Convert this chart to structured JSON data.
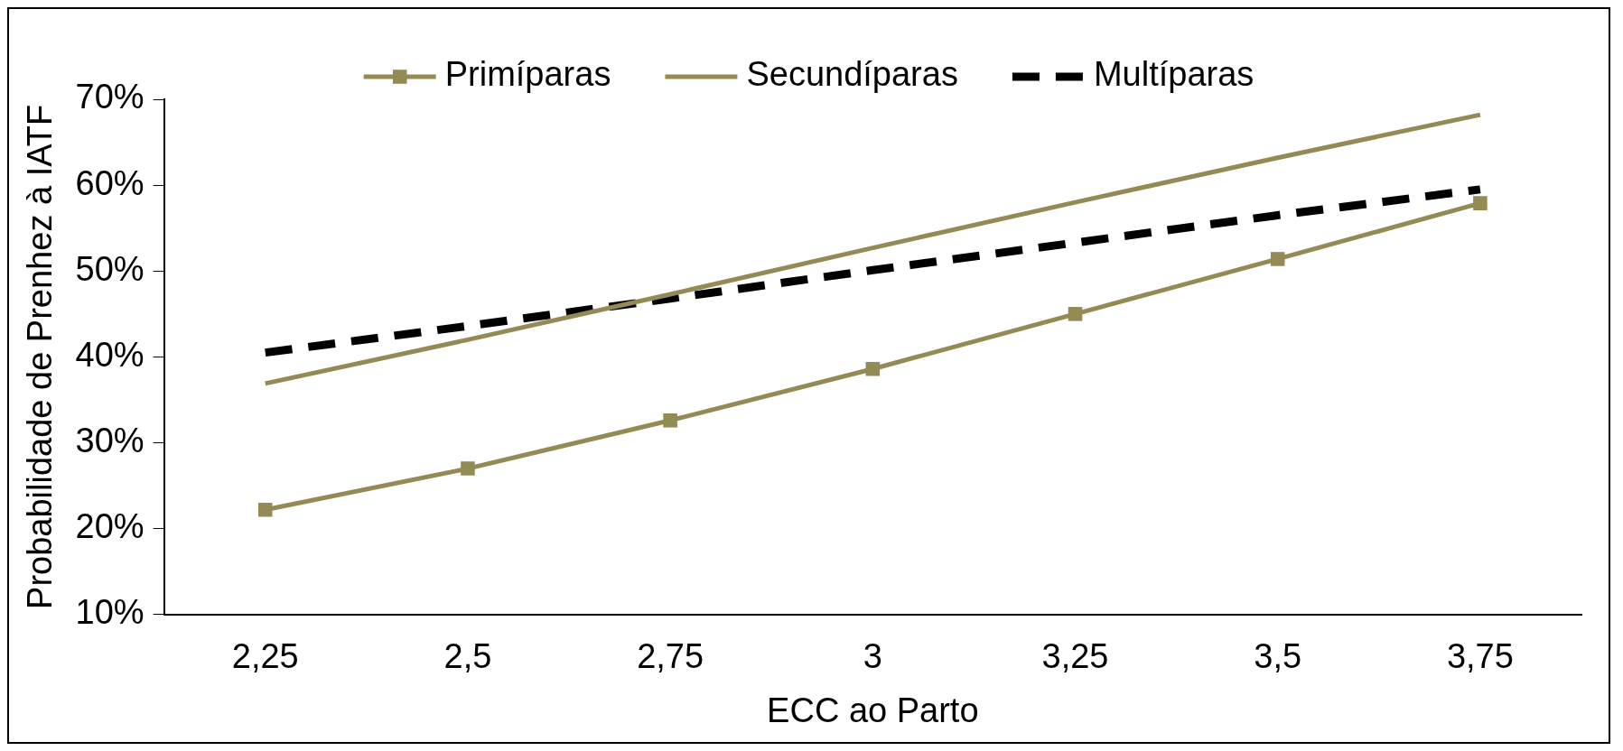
{
  "chart_data": {
    "type": "line",
    "xlabel": "ECC ao Parto",
    "ylabel": "Probabilidade de Prenhez à IATF",
    "categories": [
      "2,25",
      "2,5",
      "2,75",
      "3",
      "3,25",
      "3,5",
      "3,75"
    ],
    "series": [
      {
        "name": "Primíparas",
        "color": "#948a54",
        "marker": "square",
        "line_style": "solid",
        "values": [
          22.2,
          27.0,
          32.6,
          38.6,
          45.0,
          51.4,
          57.9
        ]
      },
      {
        "name": "Secundíparas",
        "color": "#948a54",
        "marker": "none",
        "line_style": "solid",
        "values": [
          36.9,
          42.0,
          47.3,
          52.7,
          58.0,
          63.2,
          68.2
        ]
      },
      {
        "name": "Multíparas",
        "color": "#000000",
        "marker": "none",
        "line_style": "dashed",
        "values": [
          40.5,
          43.6,
          46.8,
          50.1,
          53.3,
          56.5,
          59.5
        ]
      }
    ],
    "ylim": [
      10,
      70
    ],
    "yticks": [
      {
        "value": 10,
        "label": "10%"
      },
      {
        "value": 20,
        "label": "20%"
      },
      {
        "value": 30,
        "label": "30%"
      },
      {
        "value": 40,
        "label": "40%"
      },
      {
        "value": 50,
        "label": "50%"
      },
      {
        "value": 60,
        "label": "60%"
      },
      {
        "value": 70,
        "label": "70%"
      }
    ],
    "grid": false,
    "legend": "top"
  }
}
